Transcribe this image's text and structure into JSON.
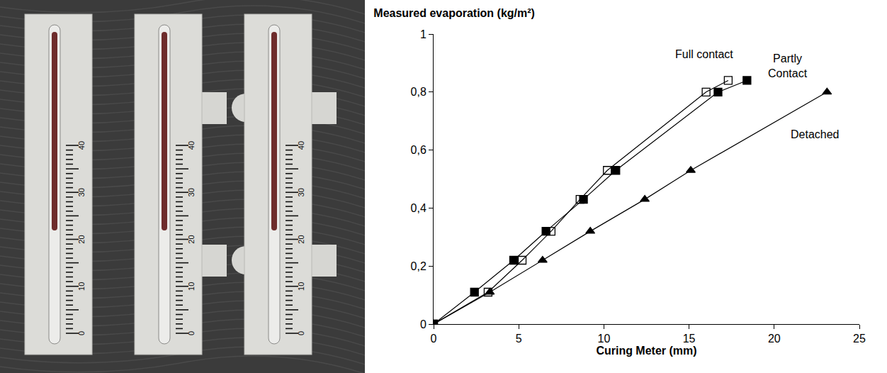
{
  "chart_data": {
    "type": "line",
    "y_label": "Measured evaporation (kg/m²)",
    "x_label": "Curing Meter (mm)",
    "xlim": [
      0,
      25
    ],
    "xticks": [
      0,
      5,
      10,
      15,
      20,
      25
    ],
    "ylim": [
      0,
      1
    ],
    "yticks": [
      0,
      {
        "value": 0.2,
        "label": "0,2"
      },
      {
        "value": 0.4,
        "label": "0,4"
      },
      {
        "value": 0.6,
        "label": "0,6"
      },
      {
        "value": 0.8,
        "label": "0,8"
      },
      1
    ],
    "grid": false,
    "series": [
      {
        "name": "Full contact",
        "color": "#000000",
        "marker": "square-open",
        "line_style": "solid",
        "x": [
          0,
          3.2,
          5.2,
          6.9,
          8.6,
          10.2,
          16.0,
          17.3
        ],
        "values": [
          0,
          0.11,
          0.22,
          0.32,
          0.43,
          0.53,
          0.8,
          0.84
        ]
      },
      {
        "name": "Partly Contact",
        "color": "#000000",
        "marker": "square",
        "line_style": "solid",
        "x": [
          0,
          2.4,
          4.7,
          6.6,
          8.8,
          10.7,
          16.7,
          18.4
        ],
        "values": [
          0,
          0.11,
          0.22,
          0.32,
          0.43,
          0.53,
          0.8,
          0.84
        ]
      },
      {
        "name": "Detached",
        "color": "#000000",
        "marker": "triangle-up",
        "line_style": "solid",
        "x": [
          0,
          3.3,
          6.4,
          9.2,
          12.4,
          15.1,
          23.1
        ],
        "values": [
          0,
          0.11,
          0.22,
          0.32,
          0.43,
          0.53,
          0.8
        ]
      }
    ]
  },
  "photo": {
    "scale_labels": [
      0,
      10,
      20,
      30,
      40
    ]
  }
}
